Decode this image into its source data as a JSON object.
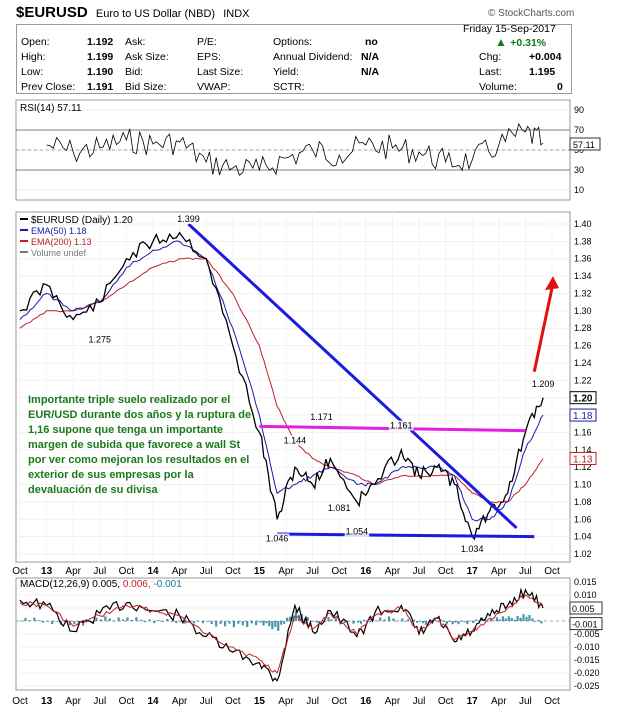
{
  "header": {
    "symbol": "$EURUSD",
    "name": "Euro to US Dollar (NBD)",
    "exchange": "INDX",
    "site": "© StockCharts.com",
    "date": "Friday  15-Sep-2017",
    "pct_change": "+0.31%",
    "quote": [
      {
        "label": "Open:",
        "value": "1.192"
      },
      {
        "label": "High:",
        "value": "1.199"
      },
      {
        "label": "Low:",
        "value": "1.190"
      },
      {
        "label": "Prev Close:",
        "value": "1.191"
      },
      {
        "label": "Ask:",
        "value": ""
      },
      {
        "label": "Ask Size:",
        "value": ""
      },
      {
        "label": "Bid:",
        "value": ""
      },
      {
        "label": "Bid Size:",
        "value": ""
      },
      {
        "label": "P/E:",
        "value": ""
      },
      {
        "label": "EPS:",
        "value": ""
      },
      {
        "label": "Last Size:",
        "value": ""
      },
      {
        "label": "VWAP:",
        "value": ""
      },
      {
        "label": "Options:",
        "value": "no"
      },
      {
        "label": "Annual Dividend:",
        "value": "N/A"
      },
      {
        "label": "Yield:",
        "value": "N/A"
      },
      {
        "label": "SCTR:",
        "value": ""
      },
      {
        "label": "Chg:",
        "value": "+0.004"
      },
      {
        "label": "Last:",
        "value": "1.195"
      },
      {
        "label": "Volume:",
        "value": "0"
      }
    ]
  },
  "colors": {
    "price": "#000000",
    "ema50": "#1a1aa8",
    "ema200": "#c0202a",
    "trend": "#1a1ae0",
    "resistance": "#e020e0",
    "arrow": "#e01010",
    "macd_hist": "#1a7a9a",
    "note": "#1a7a1a"
  },
  "note": "Importante triple suelo realizado por el EUR/USD durante dos años y la ruptura de 1,16 supone que tenga un importante margen de subida que favorece a wall St por ver como mejoran los resultados en el exterior de sus empresas por la devaluación de su divisa",
  "chart_data": [
    {
      "type": "line",
      "title": "RSI(14) 57.11",
      "last_value_label": "57.11",
      "ylim": [
        0,
        100
      ],
      "y_ticks": [
        10,
        30,
        50,
        70,
        90
      ],
      "reference_lines": [
        30,
        70
      ],
      "x": [
        "2013-01",
        "2013-04",
        "2013-07",
        "2013-10",
        "2014-01",
        "2014-04",
        "2014-07",
        "2014-10",
        "2015-01",
        "2015-04",
        "2015-07",
        "2015-10",
        "2016-01",
        "2016-04",
        "2016-07",
        "2016-10",
        "2017-01",
        "2017-04",
        "2017-07",
        "2017-09"
      ],
      "series": [
        {
          "name": "RSI(14)",
          "values": [
            55,
            48,
            52,
            60,
            56,
            58,
            38,
            32,
            30,
            42,
            50,
            45,
            55,
            52,
            48,
            38,
            40,
            55,
            68,
            57
          ]
        }
      ]
    },
    {
      "type": "line",
      "title": "$EURUSD (Daily) 1.20",
      "legend": [
        {
          "name": "$EURUSD (Daily) 1.20",
          "color": "#000000"
        },
        {
          "name": "EMA(50) 1.18",
          "color": "#1a1aa8"
        },
        {
          "name": "EMA(200) 1.13",
          "color": "#c0202a"
        },
        {
          "name": "Volume undef",
          "color": "#777777"
        }
      ],
      "ylim": [
        1.02,
        1.4
      ],
      "y_ticks": [
        1.02,
        1.04,
        1.06,
        1.08,
        1.1,
        1.12,
        1.14,
        1.16,
        1.18,
        1.2,
        1.22,
        1.24,
        1.26,
        1.28,
        1.3,
        1.32,
        1.34,
        1.36,
        1.38,
        1.4
      ],
      "last_labels": [
        "1.20",
        "1.18",
        "1.13"
      ],
      "x_labels": [
        "Oct",
        "13",
        "Apr",
        "Jul",
        "Oct",
        "14",
        "Apr",
        "Jul",
        "Oct",
        "15",
        "Apr",
        "Jul",
        "Oct",
        "16",
        "Apr",
        "Jul",
        "Oct",
        "17",
        "Apr",
        "Jul",
        "Oct"
      ],
      "x": [
        "2012-10",
        "2013-01",
        "2013-04",
        "2013-07",
        "2013-10",
        "2014-01",
        "2014-04",
        "2014-07",
        "2014-10",
        "2015-01",
        "2015-03",
        "2015-05",
        "2015-07",
        "2015-09",
        "2015-12",
        "2016-02",
        "2016-05",
        "2016-07",
        "2016-09",
        "2016-11",
        "2017-01",
        "2017-03",
        "2017-05",
        "2017-07",
        "2017-09"
      ],
      "series": [
        {
          "name": "$EURUSD",
          "values": [
            1.3,
            1.33,
            1.29,
            1.31,
            1.36,
            1.38,
            1.39,
            1.36,
            1.26,
            1.16,
            1.06,
            1.12,
            1.1,
            1.13,
            1.08,
            1.1,
            1.14,
            1.11,
            1.12,
            1.1,
            1.04,
            1.07,
            1.09,
            1.16,
            1.2
          ]
        },
        {
          "name": "EMA(50)",
          "values": [
            1.29,
            1.32,
            1.3,
            1.31,
            1.35,
            1.37,
            1.38,
            1.36,
            1.28,
            1.18,
            1.09,
            1.1,
            1.11,
            1.12,
            1.1,
            1.1,
            1.12,
            1.12,
            1.12,
            1.11,
            1.06,
            1.06,
            1.08,
            1.14,
            1.18
          ]
        },
        {
          "name": "EMA(200)",
          "values": [
            1.28,
            1.3,
            1.3,
            1.31,
            1.33,
            1.35,
            1.36,
            1.36,
            1.32,
            1.26,
            1.19,
            1.15,
            1.13,
            1.12,
            1.11,
            1.1,
            1.11,
            1.11,
            1.11,
            1.11,
            1.09,
            1.08,
            1.08,
            1.1,
            1.13
          ]
        }
      ],
      "annotations": [
        {
          "label": "1.399",
          "x": "2014-05",
          "y": 1.399
        },
        {
          "label": "1.275",
          "x": "2013-07",
          "y": 1.275
        },
        {
          "label": "1.209",
          "x": "2017-09",
          "y": 1.209
        },
        {
          "label": "1.171",
          "x": "2015-08",
          "y": 1.171
        },
        {
          "label": "1.161",
          "x": "2016-05",
          "y": 1.161
        },
        {
          "label": "1.144",
          "x": "2015-05",
          "y": 1.144
        },
        {
          "label": "1.081",
          "x": "2015-10",
          "y": 1.081
        },
        {
          "label": "1.054",
          "x": "2015-12",
          "y": 1.054
        },
        {
          "label": "1.046",
          "x": "2015-03",
          "y": 1.046
        },
        {
          "label": "1.034",
          "x": "2017-01",
          "y": 1.034
        }
      ],
      "trend_lines": [
        {
          "name": "downtrend",
          "from": [
            "2014-05",
            1.4
          ],
          "to": [
            "2017-06",
            1.05
          ]
        },
        {
          "name": "resistance",
          "from": [
            "2015-01",
            1.167
          ],
          "to": [
            "2017-07",
            1.162
          ]
        },
        {
          "name": "support",
          "from": [
            "2015-03",
            1.043
          ],
          "to": [
            "2017-08",
            1.04
          ]
        }
      ],
      "arrow": {
        "from": [
          "2017-08",
          1.23
        ],
        "to": [
          "2017-10",
          1.34
        ]
      }
    },
    {
      "type": "line",
      "title": "MACD(12,26,9) 0.005, 0.006, -0.001",
      "title_parts": [
        "MACD(12,26,9)",
        "0.005,",
        "0.006,",
        "-0.001"
      ],
      "ylim": [
        -0.025,
        0.015
      ],
      "y_ticks": [
        0.015,
        0.01,
        0.005,
        0.0,
        -0.005,
        -0.01,
        -0.015,
        -0.02,
        -0.025
      ],
      "last_labels": [
        "0.005",
        "-0.001"
      ],
      "x_labels": [
        "Oct",
        "13",
        "Apr",
        "Jul",
        "Oct",
        "14",
        "Apr",
        "Jul",
        "Oct",
        "15",
        "Apr",
        "Jul",
        "Oct",
        "16",
        "Apr",
        "Jul",
        "Oct",
        "17",
        "Apr",
        "Jul",
        "Oct"
      ],
      "x": [
        "2012-10",
        "2013-01",
        "2013-04",
        "2013-07",
        "2013-10",
        "2014-01",
        "2014-04",
        "2014-07",
        "2014-10",
        "2015-01",
        "2015-03",
        "2015-05",
        "2015-07",
        "2015-09",
        "2015-12",
        "2016-02",
        "2016-05",
        "2016-07",
        "2016-09",
        "2016-11",
        "2017-01",
        "2017-03",
        "2017-05",
        "2017-07",
        "2017-09"
      ],
      "series": [
        {
          "name": "MACD",
          "values": [
            0.008,
            0.006,
            -0.004,
            0.003,
            0.007,
            0.004,
            0.002,
            -0.006,
            -0.012,
            -0.016,
            -0.023,
            0.006,
            -0.004,
            0.004,
            -0.006,
            0.003,
            0.006,
            -0.005,
            0.001,
            -0.008,
            -0.004,
            0.002,
            0.006,
            0.012,
            0.005
          ]
        },
        {
          "name": "Signal",
          "values": [
            0.007,
            0.006,
            -0.002,
            0.002,
            0.006,
            0.004,
            0.002,
            -0.005,
            -0.01,
            -0.015,
            -0.02,
            0.002,
            -0.003,
            0.003,
            -0.005,
            0.002,
            0.005,
            -0.004,
            0.001,
            -0.007,
            -0.004,
            0.001,
            0.005,
            0.01,
            0.006
          ]
        },
        {
          "name": "Histogram",
          "values": [
            0.001,
            0.0,
            -0.002,
            0.001,
            0.001,
            0.0,
            0.0,
            -0.001,
            -0.002,
            -0.001,
            -0.003,
            0.004,
            -0.001,
            0.001,
            -0.001,
            0.001,
            0.001,
            -0.001,
            0.0,
            -0.001,
            0.0,
            0.001,
            0.001,
            0.002,
            -0.001
          ]
        }
      ]
    }
  ]
}
